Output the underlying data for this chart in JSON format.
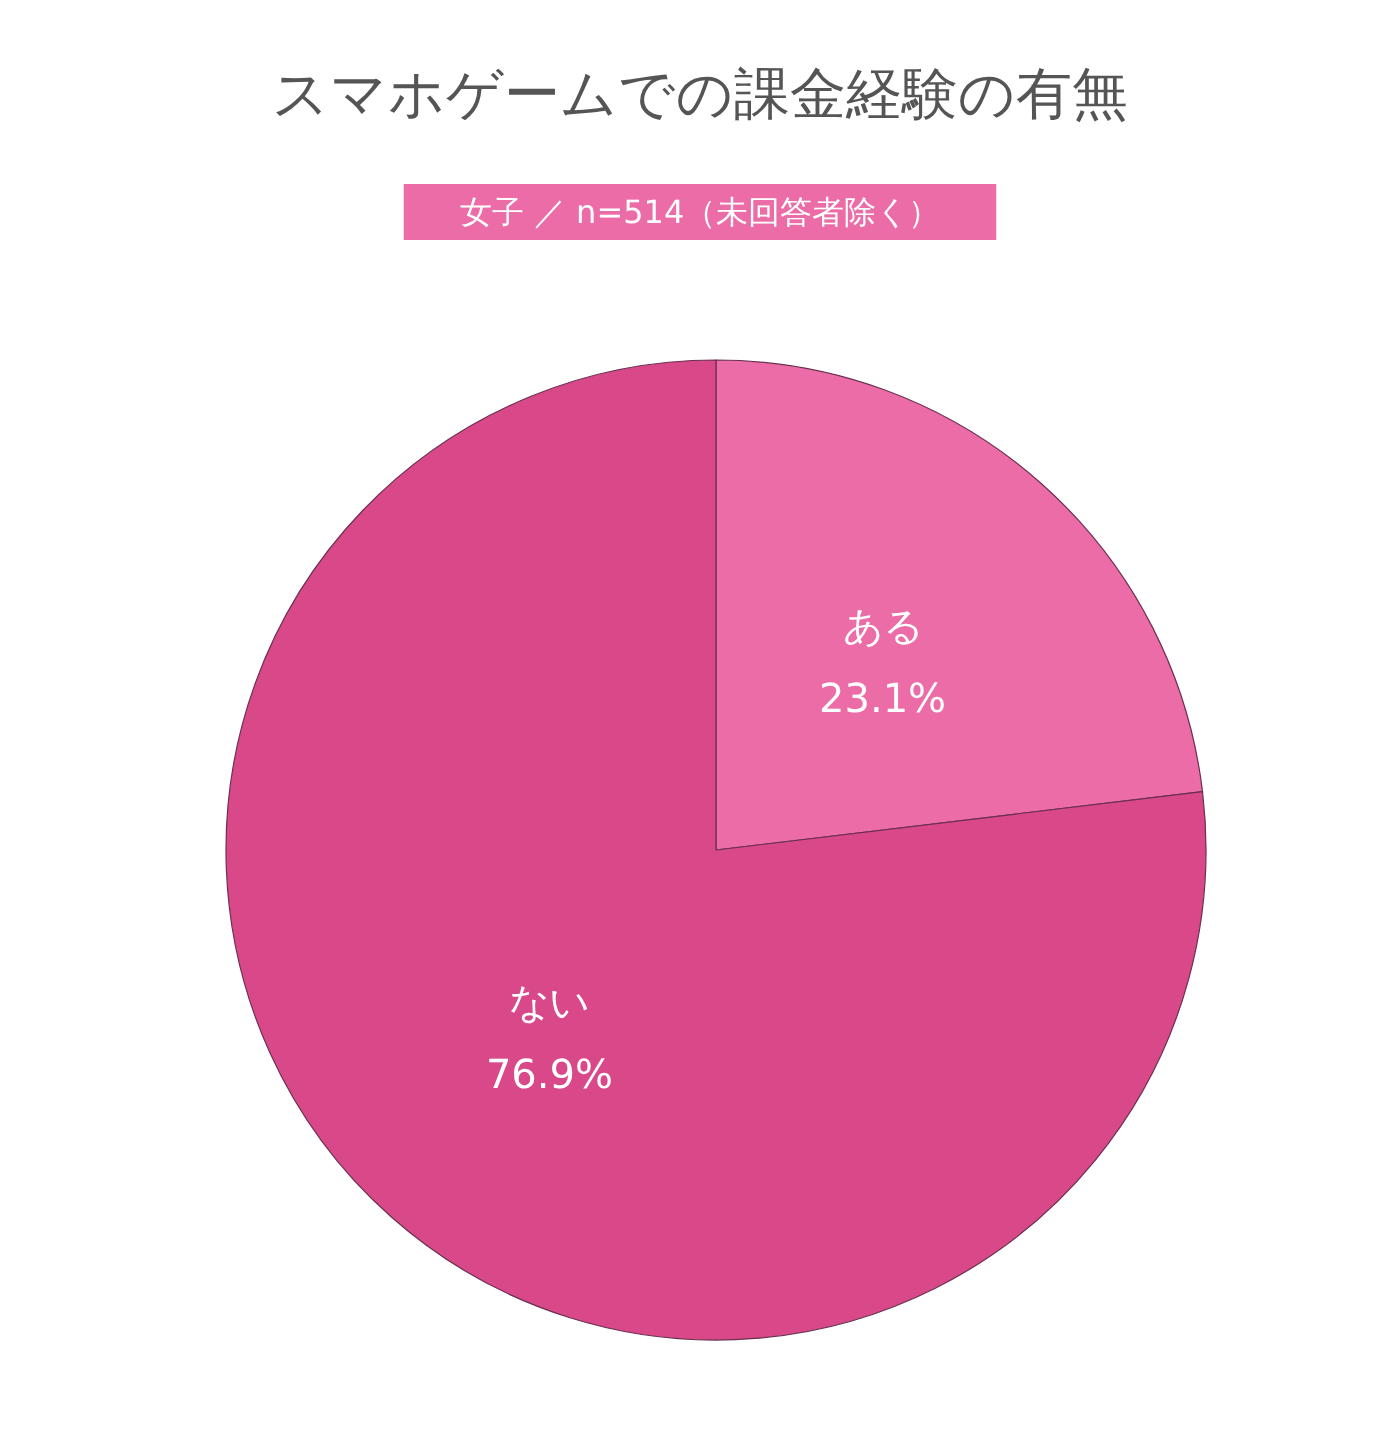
{
  "chart_data": {
    "type": "pie",
    "title": "スマホゲームでの課金経験の有無",
    "subtitle": "女子 ／ n=514（未回答者除く）",
    "categories": [
      "ある",
      "ない"
    ],
    "values": [
      23.1,
      76.9
    ],
    "colors": [
      "#eb6ca6",
      "#d94888"
    ],
    "value_labels": [
      "23.1%",
      "76.9%"
    ]
  }
}
